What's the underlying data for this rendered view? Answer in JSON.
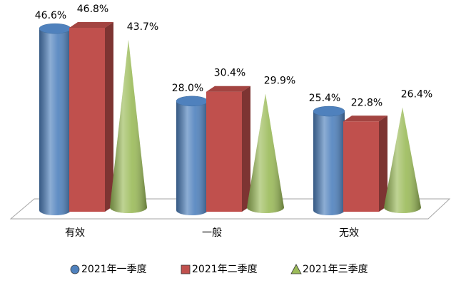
{
  "chart_data": {
    "type": "bar",
    "categories": [
      "有效",
      "一般",
      "无效"
    ],
    "series": [
      {
        "name": "2021年一季度",
        "color": "#4f81bd",
        "shape": "cylinder",
        "values": [
          46.6,
          28.0,
          25.4
        ],
        "value_labels": [
          "46.6%",
          "28.0%",
          "25.4%"
        ]
      },
      {
        "name": "2021年二季度",
        "color": "#c0504d",
        "shape": "box",
        "values": [
          46.8,
          30.4,
          22.8
        ],
        "value_labels": [
          "46.8%",
          "30.4%",
          "22.8%"
        ]
      },
      {
        "name": "2021年三季度",
        "color": "#9bbb59",
        "shape": "cone",
        "values": [
          43.7,
          29.9,
          26.4
        ],
        "value_labels": [
          "43.7%",
          "29.9%",
          "26.4%"
        ]
      }
    ]
  }
}
